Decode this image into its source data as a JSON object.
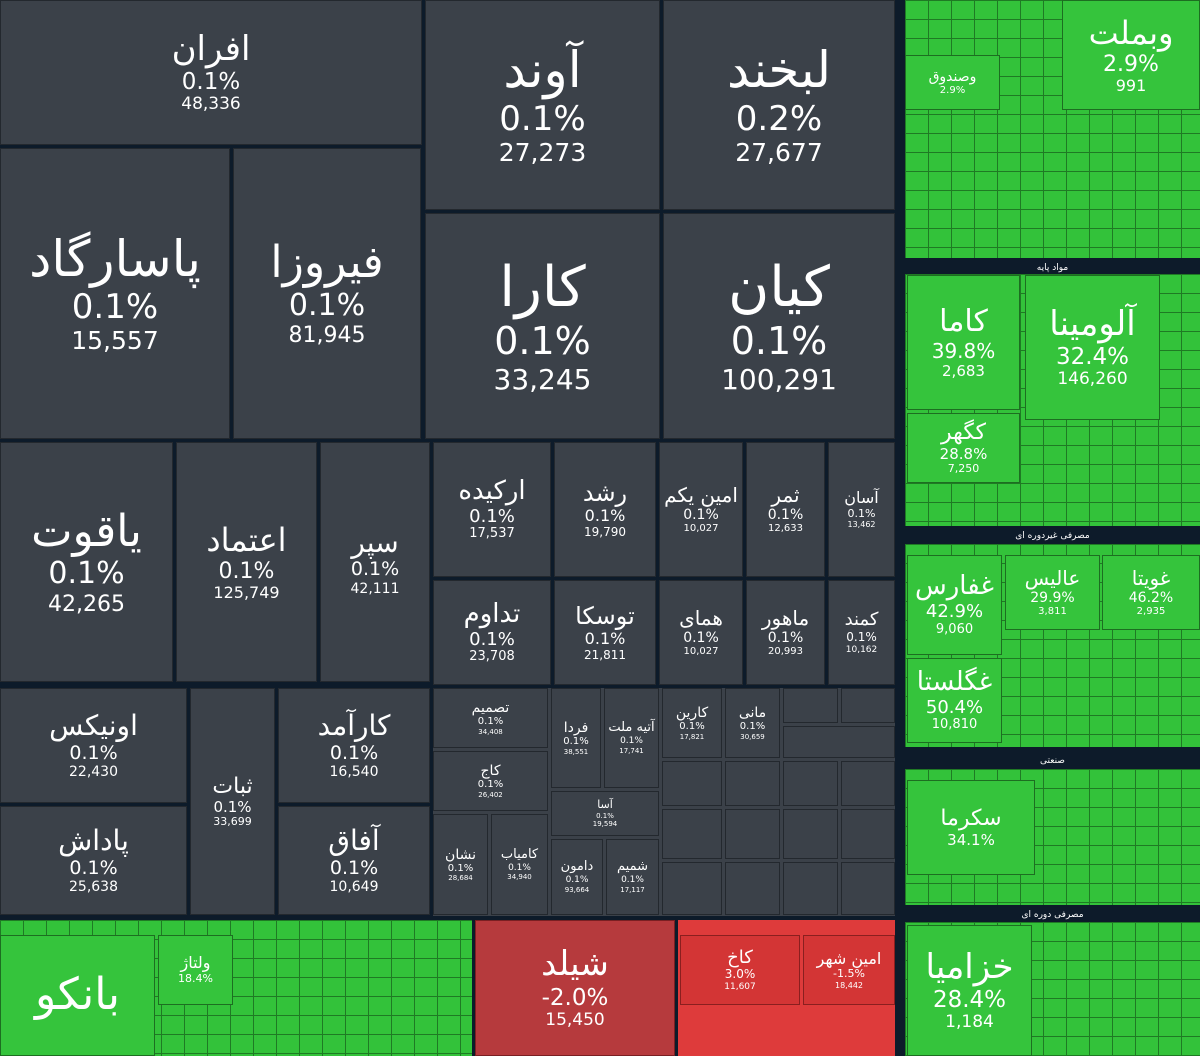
{
  "tiles": [
    {
      "name": "افران",
      "change": "0.1%",
      "volume": "48,336"
    },
    {
      "name": "آوند",
      "change": "0.1%",
      "volume": "27,273"
    },
    {
      "name": "لبخند",
      "change": "0.2%",
      "volume": "27,677"
    },
    {
      "name": "پاسارگاد",
      "change": "0.1%",
      "volume": "15,557"
    },
    {
      "name": "فیروزا",
      "change": "0.1%",
      "volume": "81,945"
    },
    {
      "name": "کارا",
      "change": "0.1%",
      "volume": "33,245"
    },
    {
      "name": "کیان",
      "change": "0.1%",
      "volume": "100,291"
    },
    {
      "name": "یاقوت",
      "change": "0.1%",
      "volume": "42,265"
    },
    {
      "name": "اعتماد",
      "change": "0.1%",
      "volume": "125,749"
    },
    {
      "name": "سپر",
      "change": "0.1%",
      "volume": "42,111"
    },
    {
      "name": "ارکیده",
      "change": "0.1%",
      "volume": "17,537"
    },
    {
      "name": "رشد",
      "change": "0.1%",
      "volume": "19,790"
    },
    {
      "name": "امین یکم",
      "change": "0.1%",
      "volume": "10,027"
    },
    {
      "name": "ثمر",
      "change": "0.1%",
      "volume": "12,633"
    },
    {
      "name": "آسان",
      "change": "0.1%",
      "volume": "13,462"
    },
    {
      "name": "تداوم",
      "change": "0.1%",
      "volume": "23,708"
    },
    {
      "name": "توسکا",
      "change": "0.1%",
      "volume": "21,811"
    },
    {
      "name": "همای",
      "change": "0.1%",
      "volume": "10,027"
    },
    {
      "name": "ماهور",
      "change": "0.1%",
      "volume": "20,993"
    },
    {
      "name": "کمند",
      "change": "0.1%",
      "volume": "10,162"
    },
    {
      "name": "اونیکس",
      "change": "0.1%",
      "volume": "22,430"
    },
    {
      "name": "پاداش",
      "change": "0.1%",
      "volume": "25,638"
    },
    {
      "name": "ثبات",
      "change": "0.1%",
      "volume": "33,699"
    },
    {
      "name": "کارآمد",
      "change": "0.1%",
      "volume": "16,540"
    },
    {
      "name": "آفاق",
      "change": "0.1%",
      "volume": "10,649"
    },
    {
      "name": "تصمیم",
      "change": "0.1%",
      "volume": "34,408"
    },
    {
      "name": "کاج",
      "change": "0.1%",
      "volume": "26,402"
    },
    {
      "name": "نشان",
      "change": "0.1%",
      "volume": "28,684"
    },
    {
      "name": "کامیاب",
      "change": "0.1%",
      "volume": "34,940"
    },
    {
      "name": "فردا",
      "change": "0.1%",
      "volume": "38,551"
    },
    {
      "name": "آتیه ملت",
      "change": "0.1%",
      "volume": "17,741"
    },
    {
      "name": "آسا",
      "change": "0.1%",
      "volume": "19,594"
    },
    {
      "name": "دامون",
      "change": "0.1%",
      "volume": "93,664"
    },
    {
      "name": "شمیم",
      "change": "0.1%",
      "volume": "17,117"
    },
    {
      "name": "کارین",
      "change": "0.1%",
      "volume": "17,821"
    },
    {
      "name": "مانی",
      "change": "0.1%",
      "volume": "30,659"
    },
    {
      "name": "وبملت",
      "change": "2.9%",
      "volume": "991"
    },
    {
      "name": "وصندوق",
      "change": "2.9%"
    },
    {
      "name": "کاما",
      "change": "39.8%",
      "volume": "2,683"
    },
    {
      "name": "کگهر",
      "change": "28.8%",
      "volume": "7,250"
    },
    {
      "name": "آلومینا",
      "change": "32.4%",
      "volume": "146,260"
    },
    {
      "name": "غفارس",
      "change": "42.9%",
      "volume": "9,060"
    },
    {
      "name": "عالیس",
      "change": "29.9%",
      "volume": "3,811"
    },
    {
      "name": "غویتا",
      "change": "46.2%",
      "volume": "2,935"
    },
    {
      "name": "غگلستا",
      "change": "50.4%",
      "volume": "10,810"
    },
    {
      "name": "سکرما",
      "change": "34.1%"
    },
    {
      "name": "خزامیا",
      "change": "28.4%",
      "volume": "1,184"
    },
    {
      "name": "بانکو"
    },
    {
      "name": "ولتاژ",
      "change": "18.4%"
    },
    {
      "name": "شیلد",
      "change": "-2.0%",
      "volume": "15,450"
    },
    {
      "name": "کاخ",
      "change": "3.0%",
      "volume": "11,607"
    },
    {
      "name": "امین شهر",
      "change": "-1.5%",
      "volume": "18,442"
    }
  ],
  "sections": [
    "مواد پایه",
    "مصرفی غیردوره ای",
    "صنعتی",
    "مصرفی دوره ای"
  ]
}
